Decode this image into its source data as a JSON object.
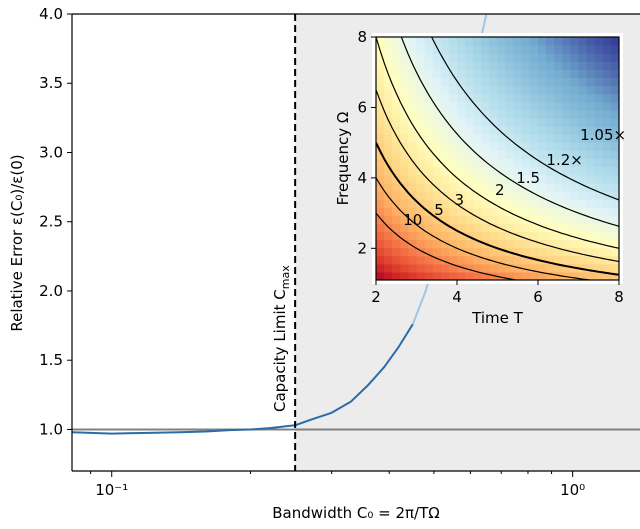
{
  "chart_data": [
    {
      "type": "line",
      "title": "",
      "xlabel": "Bandwidth C₀ = 2π/TΩ",
      "ylabel": "Relative Error ε(C₀)/ε(0)",
      "xscale": "log",
      "xlim": [
        0.082,
        1.4
      ],
      "ylim": [
        0.7,
        4.0
      ],
      "xticks": [
        {
          "value": 0.1,
          "label": "10⁻¹"
        },
        {
          "value": 1.0,
          "label": "10⁰"
        }
      ],
      "yticks": [
        {
          "value": 1.0,
          "label": "1.0"
        },
        {
          "value": 1.5,
          "label": "1.5"
        },
        {
          "value": 2.0,
          "label": "2.0"
        },
        {
          "value": 2.5,
          "label": "2.5"
        },
        {
          "value": 3.0,
          "label": "3.0"
        },
        {
          "value": 3.5,
          "label": "3.5"
        },
        {
          "value": 4.0,
          "label": "4.0"
        }
      ],
      "reference_line_y": 1.0,
      "capacity_limit": {
        "x": 0.25,
        "label": "Capacity Limit C_max"
      },
      "shaded_region": "x > C_max",
      "series": [
        {
          "style": "solid",
          "color": "#2b6ca8",
          "points": [
            [
              0.082,
              0.98
            ],
            [
              0.09,
              0.975
            ],
            [
              0.1,
              0.97
            ],
            [
              0.12,
              0.975
            ],
            [
              0.14,
              0.98
            ],
            [
              0.16,
              0.985
            ],
            [
              0.18,
              0.995
            ],
            [
              0.2,
              1.0
            ],
            [
              0.22,
              1.01
            ],
            [
              0.25,
              1.03
            ],
            [
              0.27,
              1.07
            ],
            [
              0.3,
              1.12
            ],
            [
              0.33,
              1.2
            ],
            [
              0.36,
              1.32
            ],
            [
              0.39,
              1.45
            ],
            [
              0.42,
              1.6
            ],
            [
              0.45,
              1.76
            ]
          ]
        },
        {
          "style": "faded",
          "color": "#9ec5e6",
          "points": [
            [
              0.45,
              1.76
            ],
            [
              0.48,
              2.0
            ],
            [
              0.51,
              2.3
            ],
            [
              0.54,
              2.65
            ],
            [
              0.57,
              3.0
            ],
            [
              0.6,
              3.4
            ],
            [
              0.63,
              3.8
            ],
            [
              0.65,
              4.0
            ]
          ]
        }
      ]
    },
    {
      "type": "heatmap",
      "title": "",
      "xlabel": "Time T",
      "ylabel": "Frequency Ω",
      "xlim": [
        2,
        8
      ],
      "ylim": [
        1.1,
        8
      ],
      "xticks": [
        2,
        4,
        6,
        8
      ],
      "yticks": [
        2,
        4,
        6,
        8
      ],
      "colormap": "RdYlBu",
      "contour_levels": [
        {
          "level": 10,
          "label": "10"
        },
        {
          "level": 5,
          "label": "5"
        },
        {
          "level": 3,
          "label": "3"
        },
        {
          "level": 2,
          "label": "2"
        },
        {
          "level": 1.5,
          "label": "1.5"
        },
        {
          "level": 1.2,
          "label": "1.2×"
        },
        {
          "level": 1.05,
          "label": "1.05×"
        }
      ]
    }
  ]
}
